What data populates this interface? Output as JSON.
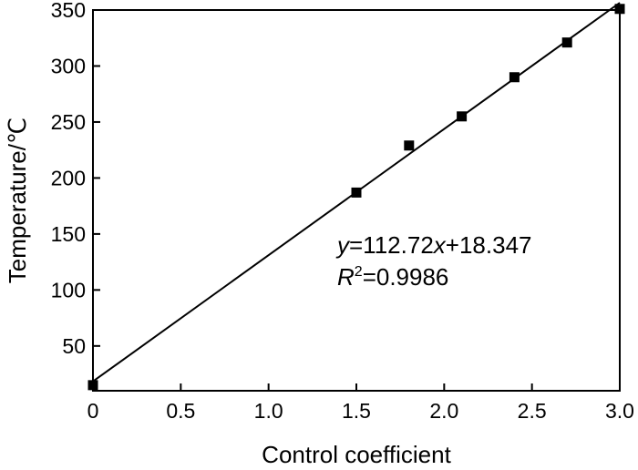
{
  "chart_data": {
    "type": "scatter",
    "xlabel": "Control coefficient",
    "ylabel": "Temperature/℃",
    "xlim": [
      0,
      3.0
    ],
    "ylim": [
      10,
      350
    ],
    "x_ticks": [
      "0",
      "0.5",
      "1.0",
      "1.5",
      "2.0",
      "2.5",
      "3.0"
    ],
    "y_ticks": [
      "50",
      "100",
      "150",
      "200",
      "250",
      "300",
      "350"
    ],
    "grid": false,
    "series": [
      {
        "points": [
          {
            "x": 0.0,
            "y": 15
          },
          {
            "x": 1.5,
            "y": 187
          },
          {
            "x": 1.8,
            "y": 229
          },
          {
            "x": 2.1,
            "y": 255
          },
          {
            "x": 2.4,
            "y": 290
          },
          {
            "x": 2.7,
            "y": 321
          },
          {
            "x": 3.0,
            "y": 351
          }
        ]
      }
    ],
    "fit": {
      "slope": 112.72,
      "intercept": 18.347
    },
    "annotation": {
      "eq_y": "y",
      "eq_rest": "=112.72",
      "eq_x": "x",
      "eq_const": "+18.347",
      "r": "R",
      "r_sup": "2",
      "r_val": "=0.9986"
    }
  }
}
